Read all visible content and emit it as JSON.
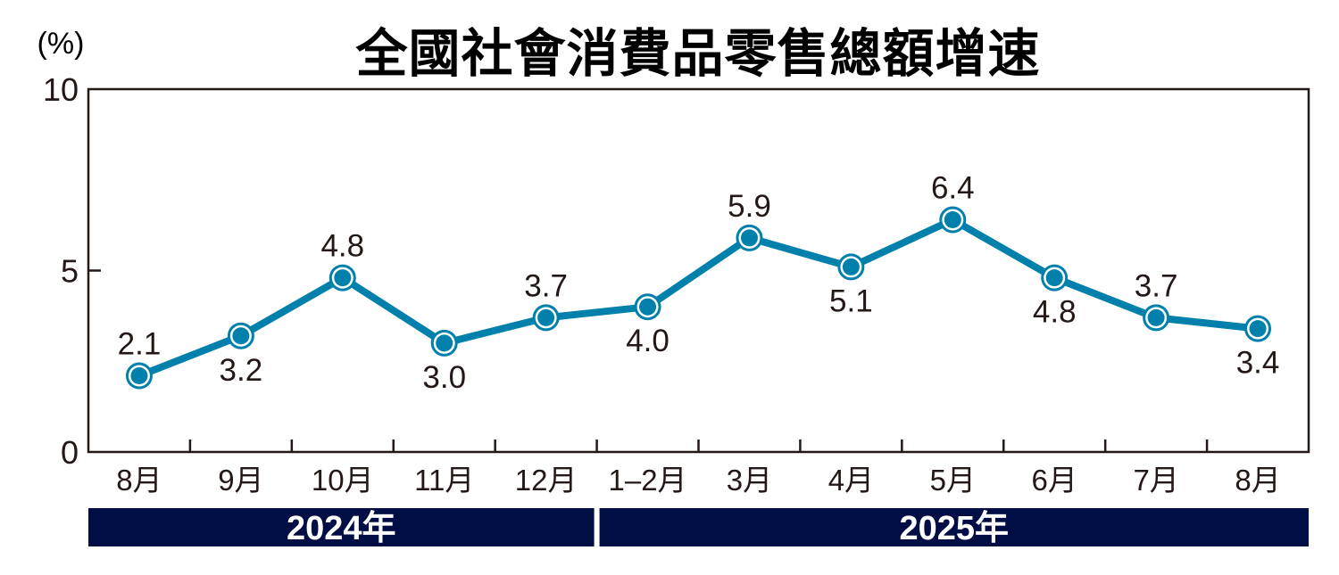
{
  "chart_data": {
    "type": "line",
    "title": "全國社會消費品零售總額增速",
    "ylabel": "(%)",
    "xlabel": "",
    "ylim": [
      0,
      10
    ],
    "yticks": [
      0,
      5,
      10
    ],
    "grid": false,
    "legend": null,
    "categories": [
      "8月",
      "9月",
      "10月",
      "11月",
      "12月",
      "1–2月",
      "3月",
      "4月",
      "5月",
      "6月",
      "7月",
      "8月"
    ],
    "year_groups": [
      {
        "label": "2024年",
        "categories": [
          "8月",
          "9月",
          "10月",
          "11月",
          "12月"
        ]
      },
      {
        "label": "2025年",
        "categories": [
          "1–2月",
          "3月",
          "4月",
          "5月",
          "6月",
          "7月",
          "8月"
        ]
      }
    ],
    "series": [
      {
        "name": "全國社會消費品零售總額增速",
        "color": "#0080AA",
        "values": [
          2.1,
          3.2,
          4.8,
          3.0,
          3.7,
          4.0,
          5.9,
          5.1,
          6.4,
          4.8,
          3.7,
          3.4
        ]
      }
    ],
    "data_labels": [
      "2.1",
      "3.2",
      "4.8",
      "3.0",
      "3.7",
      "4.0",
      "5.9",
      "5.1",
      "6.4",
      "4.8",
      "3.7",
      "3.4"
    ],
    "label_positions": [
      "above",
      "below",
      "above",
      "below",
      "above",
      "below",
      "above",
      "below",
      "above",
      "below",
      "above",
      "below"
    ]
  },
  "colors": {
    "line": "#0080AA",
    "axis": "#231815",
    "year_band": "#000E45",
    "year_text": "#FFFFFF"
  }
}
